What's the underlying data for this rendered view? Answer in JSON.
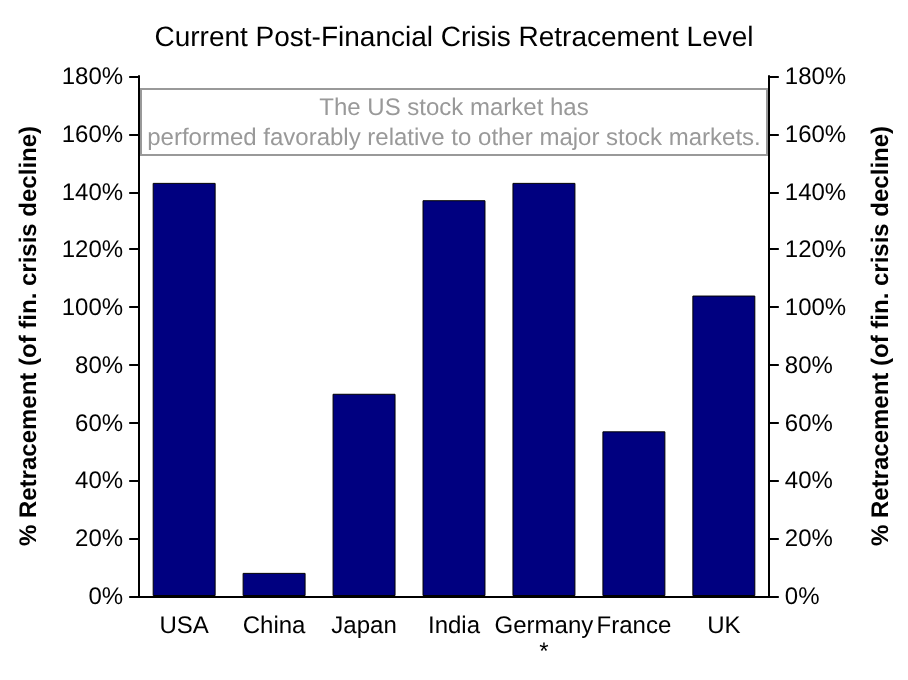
{
  "chart_data": {
    "type": "bar",
    "title": "Current Post-Financial Crisis Retracement Level",
    "annotations": [
      "The US stock market has\nperformed favorably relative to other major stock markets."
    ],
    "categories": [
      "USA",
      "China",
      "Japan",
      "India",
      "Germany\n*",
      "France",
      "UK"
    ],
    "values": [
      143,
      8,
      70,
      137,
      143,
      57,
      104
    ],
    "color": "#000080",
    "ylabel": "% Retracement (of fin. crisis decline)",
    "y2label": "% Retracement (of fin. crisis decline)",
    "ylim": [
      0,
      180
    ],
    "yticks": [
      {
        "value": 0,
        "label": "0%"
      },
      {
        "value": 20,
        "label": "20%"
      },
      {
        "value": 40,
        "label": "40%"
      },
      {
        "value": 60,
        "label": "60%"
      },
      {
        "value": 80,
        "label": "80%"
      },
      {
        "value": 100,
        "label": "100%"
      },
      {
        "value": 120,
        "label": "120%"
      },
      {
        "value": 140,
        "label": "140%"
      },
      {
        "value": 160,
        "label": "160%"
      },
      {
        "value": 180,
        "label": "180%"
      }
    ],
    "y2lim": [
      0,
      180
    ],
    "y2ticks": [
      {
        "value": 0,
        "label": "0%"
      },
      {
        "value": 20,
        "label": "20%"
      },
      {
        "value": 40,
        "label": "40%"
      },
      {
        "value": 60,
        "label": "60%"
      },
      {
        "value": 80,
        "label": "80%"
      },
      {
        "value": 100,
        "label": "100%"
      },
      {
        "value": 120,
        "label": "120%"
      },
      {
        "value": 140,
        "label": "140%"
      },
      {
        "value": 160,
        "label": "160%"
      },
      {
        "value": 180,
        "label": "180%"
      }
    ],
    "grid": false
  }
}
